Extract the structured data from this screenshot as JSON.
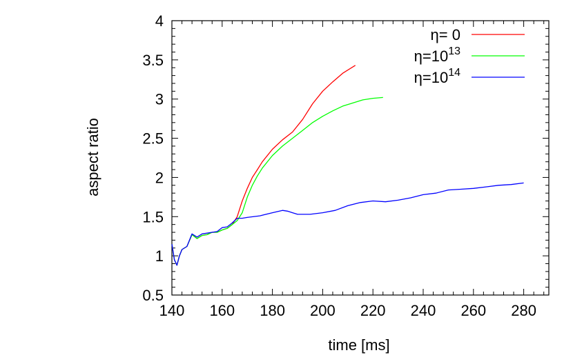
{
  "chart_data": {
    "type": "line",
    "title": "",
    "xlabel": "time [ms]",
    "ylabel": "aspect ratio",
    "xlim": [
      140,
      290
    ],
    "ylim": [
      0.5,
      4
    ],
    "xticks": [
      140,
      160,
      180,
      200,
      220,
      240,
      260,
      280
    ],
    "yticks": [
      0.5,
      1,
      1.5,
      2,
      2.5,
      3,
      3.5,
      4
    ],
    "xtick_labels": [
      "140",
      "160",
      "180",
      "200",
      "220",
      "240",
      "260",
      "280"
    ],
    "ytick_labels": [
      "0.5",
      "1",
      "1.5",
      "2",
      "2.5",
      "3",
      "3.5",
      "4"
    ],
    "grid": false,
    "legend_position": "top-right",
    "series": [
      {
        "name": "η= 0",
        "legend": {
          "symbol": "η",
          "text": "= 0",
          "sup": ""
        },
        "color": "#ff0000",
        "x": [
          140,
          141,
          142,
          143,
          144,
          146,
          148,
          150,
          152,
          154,
          156,
          158,
          160,
          162,
          164,
          166,
          168,
          170,
          172,
          174,
          176,
          180,
          184,
          188,
          192,
          196,
          200,
          204,
          208,
          212,
          213
        ],
        "y": [
          1.15,
          0.95,
          0.88,
          1.0,
          1.08,
          1.12,
          1.27,
          1.22,
          1.26,
          1.27,
          1.3,
          1.3,
          1.33,
          1.35,
          1.4,
          1.5,
          1.7,
          1.86,
          2.0,
          2.1,
          2.2,
          2.36,
          2.48,
          2.58,
          2.74,
          2.94,
          3.1,
          3.22,
          3.33,
          3.41,
          3.43
        ]
      },
      {
        "name": "η=10¹³",
        "legend": {
          "symbol": "η",
          "text": "=10",
          "sup": "13"
        },
        "color": "#00ff00",
        "x": [
          140,
          141,
          142,
          143,
          144,
          146,
          148,
          150,
          152,
          154,
          156,
          158,
          160,
          162,
          164,
          166,
          168,
          170,
          172,
          174,
          176,
          180,
          184,
          188,
          192,
          196,
          200,
          204,
          208,
          212,
          216,
          220,
          224
        ],
        "y": [
          1.15,
          0.95,
          0.88,
          1.0,
          1.08,
          1.12,
          1.27,
          1.22,
          1.26,
          1.27,
          1.3,
          1.3,
          1.33,
          1.35,
          1.4,
          1.45,
          1.55,
          1.75,
          1.9,
          2.02,
          2.12,
          2.28,
          2.4,
          2.5,
          2.6,
          2.7,
          2.78,
          2.85,
          2.91,
          2.95,
          2.99,
          3.01,
          3.02
        ]
      },
      {
        "name": "η=10¹⁴",
        "legend": {
          "symbol": "η",
          "text": "=10",
          "sup": "14"
        },
        "color": "#0000ff",
        "x": [
          140,
          141,
          142,
          143,
          144,
          146,
          148,
          150,
          152,
          154,
          156,
          158,
          160,
          162,
          164,
          166,
          168,
          170,
          175,
          180,
          184,
          186,
          188,
          190,
          195,
          200,
          205,
          210,
          215,
          220,
          225,
          230,
          235,
          240,
          245,
          250,
          255,
          260,
          265,
          270,
          275,
          280
        ],
        "y": [
          1.15,
          0.95,
          0.88,
          1.0,
          1.08,
          1.12,
          1.28,
          1.24,
          1.28,
          1.29,
          1.3,
          1.31,
          1.36,
          1.37,
          1.42,
          1.48,
          1.48,
          1.49,
          1.51,
          1.55,
          1.58,
          1.57,
          1.55,
          1.53,
          1.53,
          1.55,
          1.58,
          1.64,
          1.68,
          1.7,
          1.69,
          1.71,
          1.74,
          1.78,
          1.8,
          1.84,
          1.85,
          1.86,
          1.88,
          1.9,
          1.91,
          1.93
        ]
      }
    ]
  }
}
